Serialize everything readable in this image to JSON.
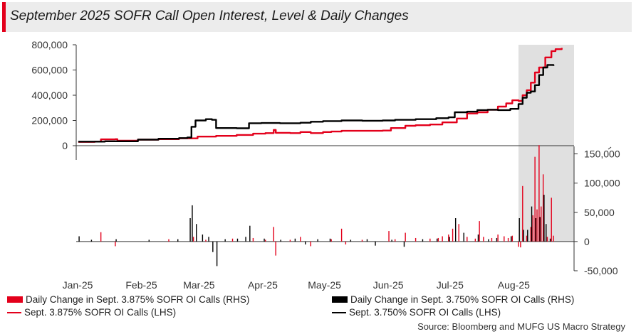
{
  "title": "September 2025 SOFR Call Open Interest, Level & Daily Changes",
  "source": "Source: Bloomberg and MUFG US Macro Strategy",
  "colors": {
    "red": "#e3001b",
    "black": "#000000",
    "shade": "#e0e0e0",
    "title_bg": "#ececec"
  },
  "legend": {
    "items": [
      {
        "label": "Daily Change in Sept. 3.875% SOFR OI Calls (RHS)",
        "style": "box",
        "color": "#e3001b"
      },
      {
        "label": "Daily Change in Sept. 3.750% SOFR OI Calls (RHS)",
        "style": "box",
        "color": "#000000"
      },
      {
        "label": "Sept. 3.875% SOFR OI Calls (LHS)",
        "style": "line",
        "color": "#e3001b"
      },
      {
        "label": "Sept. 3.750% SOFR OI Calls (LHS)",
        "style": "line",
        "color": "#000000"
      }
    ]
  },
  "chart_data": {
    "type": "line",
    "title": "September 2025 SOFR Call Open Interest, Level & Daily Changes",
    "x_tick_labels": [
      "Jan-25",
      "Feb-25",
      "Mar-25",
      "Apr-25",
      "May-25",
      "Jun-25",
      "Jul-25",
      "Aug-25"
    ],
    "x_range": [
      "2025-01-01",
      "2025-08-31"
    ],
    "left_axis": {
      "ticks": [
        "0",
        "200,000",
        "400,000",
        "600,000",
        "800,000"
      ],
      "ylim": [
        0,
        800000
      ]
    },
    "right_axis": {
      "ticks": [
        "-50,000",
        "0",
        "50,000",
        "100,000",
        "150,000"
      ],
      "ylim": [
        -50000,
        175000
      ]
    },
    "shaded_region": {
      "start": "2025-08-04",
      "end": "2025-08-31"
    },
    "series": [
      {
        "name": "Sept. 3.875% SOFR OI Calls (LHS)",
        "axis": "left",
        "color": "#e3001b",
        "points": [
          [
            "2025-01-02",
            30000
          ],
          [
            "2025-01-10",
            32000
          ],
          [
            "2025-01-13",
            50000
          ],
          [
            "2025-01-20",
            52000
          ],
          [
            "2025-01-21",
            40000
          ],
          [
            "2025-01-31",
            48000
          ],
          [
            "2025-02-10",
            52000
          ],
          [
            "2025-02-20",
            58000
          ],
          [
            "2025-03-01",
            72000
          ],
          [
            "2025-03-10",
            78000
          ],
          [
            "2025-03-20",
            85000
          ],
          [
            "2025-03-28",
            95000
          ],
          [
            "2025-04-03",
            100000
          ],
          [
            "2025-04-07",
            125000
          ],
          [
            "2025-04-08",
            102000
          ],
          [
            "2025-04-15",
            100000
          ],
          [
            "2025-04-20",
            108000
          ],
          [
            "2025-04-25",
            100000
          ],
          [
            "2025-05-01",
            108000
          ],
          [
            "2025-05-05",
            112000
          ],
          [
            "2025-05-10",
            118000
          ],
          [
            "2025-05-20",
            118000
          ],
          [
            "2025-05-30",
            120000
          ],
          [
            "2025-06-03",
            140000
          ],
          [
            "2025-06-10",
            158000
          ],
          [
            "2025-06-15",
            162000
          ],
          [
            "2025-06-22",
            168000
          ],
          [
            "2025-06-28",
            185000
          ],
          [
            "2025-07-05",
            215000
          ],
          [
            "2025-07-10",
            255000
          ],
          [
            "2025-07-15",
            265000
          ],
          [
            "2025-07-20",
            285000
          ],
          [
            "2025-07-25",
            310000
          ],
          [
            "2025-07-29",
            335000
          ],
          [
            "2025-08-01",
            360000
          ],
          [
            "2025-08-04",
            355000
          ],
          [
            "2025-08-06",
            400000
          ],
          [
            "2025-08-08",
            440000
          ],
          [
            "2025-08-10",
            500000
          ],
          [
            "2025-08-12",
            580000
          ],
          [
            "2025-08-14",
            620000
          ],
          [
            "2025-08-17",
            700000
          ],
          [
            "2025-08-20",
            750000
          ],
          [
            "2025-08-22",
            765000
          ],
          [
            "2025-08-25",
            775000
          ]
        ]
      },
      {
        "name": "Sept. 3.750% SOFR OI Calls (LHS)",
        "axis": "left",
        "color": "#000000",
        "points": [
          [
            "2025-01-02",
            32000
          ],
          [
            "2025-01-15",
            35000
          ],
          [
            "2025-01-31",
            48000
          ],
          [
            "2025-02-10",
            55000
          ],
          [
            "2025-02-20",
            60000
          ],
          [
            "2025-02-24",
            65000
          ],
          [
            "2025-02-26",
            150000
          ],
          [
            "2025-02-28",
            200000
          ],
          [
            "2025-03-05",
            210000
          ],
          [
            "2025-03-08",
            205000
          ],
          [
            "2025-03-10",
            140000
          ],
          [
            "2025-03-20",
            138000
          ],
          [
            "2025-03-26",
            178000
          ],
          [
            "2025-04-01",
            180000
          ],
          [
            "2025-04-10",
            178000
          ],
          [
            "2025-04-20",
            182000
          ],
          [
            "2025-04-25",
            190000
          ],
          [
            "2025-05-01",
            195000
          ],
          [
            "2025-05-10",
            200000
          ],
          [
            "2025-05-20",
            198000
          ],
          [
            "2025-05-30",
            200000
          ],
          [
            "2025-06-05",
            205000
          ],
          [
            "2025-06-15",
            210000
          ],
          [
            "2025-06-25",
            218000
          ],
          [
            "2025-07-01",
            225000
          ],
          [
            "2025-07-04",
            265000
          ],
          [
            "2025-07-10",
            270000
          ],
          [
            "2025-07-15",
            282000
          ],
          [
            "2025-07-20",
            285000
          ],
          [
            "2025-07-25",
            282000
          ],
          [
            "2025-07-31",
            292000
          ],
          [
            "2025-08-04",
            330000
          ],
          [
            "2025-08-06",
            380000
          ],
          [
            "2025-08-08",
            420000
          ],
          [
            "2025-08-10",
            430000
          ],
          [
            "2025-08-12",
            480000
          ],
          [
            "2025-08-14",
            560000
          ],
          [
            "2025-08-16",
            620000
          ],
          [
            "2025-08-18",
            640000
          ],
          [
            "2025-08-21",
            632000
          ]
        ]
      },
      {
        "name": "Daily Change in Sept. 3.875% SOFR OI Calls (RHS)",
        "axis": "right",
        "color": "#e3001b",
        "type": "bar",
        "points": [
          [
            "2025-01-13",
            16000
          ],
          [
            "2025-01-20",
            -8000
          ],
          [
            "2025-02-15",
            4000
          ],
          [
            "2025-02-27",
            8000
          ],
          [
            "2025-03-05",
            3000
          ],
          [
            "2025-03-18",
            5000
          ],
          [
            "2025-03-28",
            6000
          ],
          [
            "2025-04-03",
            3000
          ],
          [
            "2025-04-07",
            25000
          ],
          [
            "2025-04-08",
            -24000
          ],
          [
            "2025-04-15",
            3000
          ],
          [
            "2025-04-20",
            8000
          ],
          [
            "2025-04-25",
            -8000
          ],
          [
            "2025-05-05",
            4000
          ],
          [
            "2025-05-10",
            22000
          ],
          [
            "2025-05-12",
            -5000
          ],
          [
            "2025-05-20",
            3000
          ],
          [
            "2025-06-02",
            18000
          ],
          [
            "2025-06-05",
            4000
          ],
          [
            "2025-06-10",
            15000
          ],
          [
            "2025-06-15",
            6000
          ],
          [
            "2025-06-22",
            5000
          ],
          [
            "2025-06-26",
            6000
          ],
          [
            "2025-06-28",
            9000
          ],
          [
            "2025-07-01",
            12000
          ],
          [
            "2025-07-03",
            22000
          ],
          [
            "2025-07-06",
            30000
          ],
          [
            "2025-07-10",
            8000
          ],
          [
            "2025-07-14",
            5000
          ],
          [
            "2025-07-16",
            35000
          ],
          [
            "2025-07-18",
            8000
          ],
          [
            "2025-07-22",
            6000
          ],
          [
            "2025-07-25",
            12000
          ],
          [
            "2025-07-28",
            9000
          ],
          [
            "2025-07-30",
            6000
          ],
          [
            "2025-08-01",
            10000
          ],
          [
            "2025-08-04",
            -9000
          ],
          [
            "2025-08-05",
            -10000
          ],
          [
            "2025-08-06",
            95000
          ],
          [
            "2025-08-08",
            10000
          ],
          [
            "2025-08-10",
            25000
          ],
          [
            "2025-08-11",
            45000
          ],
          [
            "2025-08-12",
            145000
          ],
          [
            "2025-08-13",
            55000
          ],
          [
            "2025-08-14",
            165000
          ],
          [
            "2025-08-15",
            60000
          ],
          [
            "2025-08-16",
            115000
          ],
          [
            "2025-08-18",
            8000
          ],
          [
            "2025-08-20",
            75000
          ],
          [
            "2025-08-21",
            10000
          ]
        ]
      },
      {
        "name": "Daily Change in Sept. 3.750% SOFR OI Calls (RHS)",
        "axis": "right",
        "color": "#000000",
        "type": "bar",
        "points": [
          [
            "2025-01-02",
            9000
          ],
          [
            "2025-01-08",
            3000
          ],
          [
            "2025-01-20",
            4000
          ],
          [
            "2025-02-05",
            3000
          ],
          [
            "2025-02-19",
            4000
          ],
          [
            "2025-02-25",
            40000
          ],
          [
            "2025-02-26",
            62000
          ],
          [
            "2025-02-28",
            30000
          ],
          [
            "2025-03-03",
            12000
          ],
          [
            "2025-03-06",
            8000
          ],
          [
            "2025-03-08",
            -18000
          ],
          [
            "2025-03-10",
            -42000
          ],
          [
            "2025-03-14",
            4000
          ],
          [
            "2025-03-20",
            5000
          ],
          [
            "2025-03-24",
            8000
          ],
          [
            "2025-03-26",
            27000
          ],
          [
            "2025-04-02",
            5000
          ],
          [
            "2025-04-10",
            3000
          ],
          [
            "2025-04-17",
            5000
          ],
          [
            "2025-04-22",
            -5000
          ],
          [
            "2025-04-28",
            4000
          ],
          [
            "2025-05-04",
            5000
          ],
          [
            "2025-05-14",
            3000
          ],
          [
            "2025-05-22",
            4000
          ],
          [
            "2025-05-26",
            -7000
          ],
          [
            "2025-06-03",
            3000
          ],
          [
            "2025-06-09",
            -9000
          ],
          [
            "2025-06-18",
            4000
          ],
          [
            "2025-06-25",
            5000
          ],
          [
            "2025-07-01",
            8000
          ],
          [
            "2025-07-04",
            40000
          ],
          [
            "2025-07-08",
            15000
          ],
          [
            "2025-07-15",
            12000
          ],
          [
            "2025-07-20",
            4000
          ],
          [
            "2025-07-24",
            6000
          ],
          [
            "2025-07-31",
            9000
          ],
          [
            "2025-08-04",
            40000
          ],
          [
            "2025-08-06",
            20000
          ],
          [
            "2025-08-08",
            20000
          ],
          [
            "2025-08-10",
            60000
          ],
          [
            "2025-08-12",
            40000
          ],
          [
            "2025-08-14",
            42000
          ],
          [
            "2025-08-16",
            80000
          ],
          [
            "2025-08-17",
            30000
          ],
          [
            "2025-08-19",
            5000
          ]
        ]
      }
    ]
  }
}
